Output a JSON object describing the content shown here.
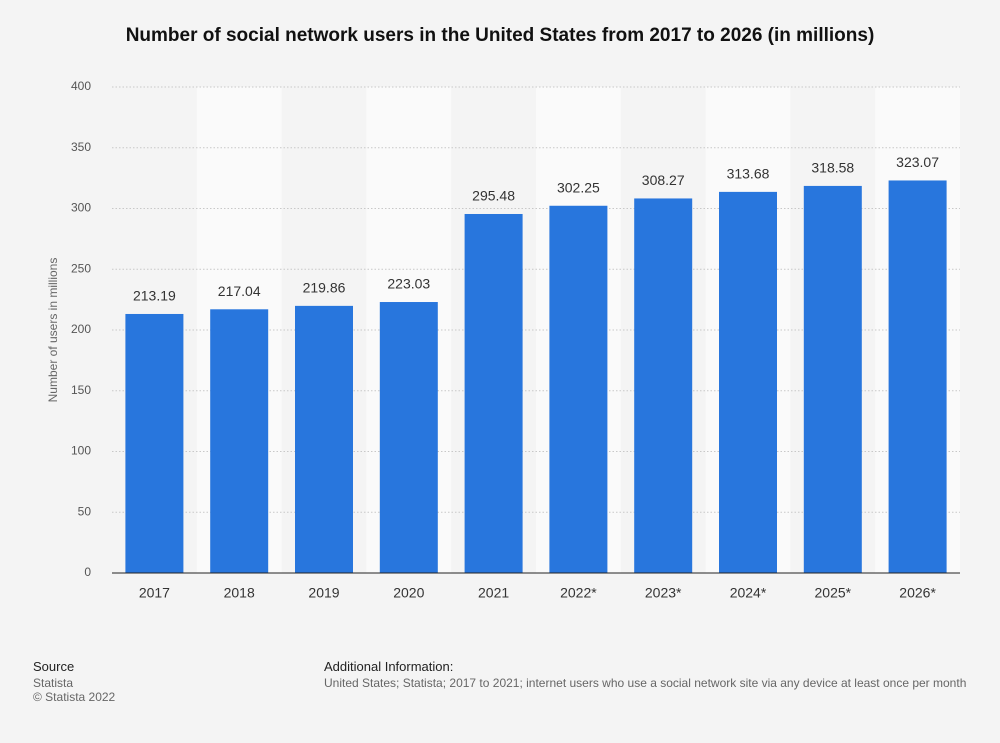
{
  "chart_data": {
    "type": "bar",
    "title": "Number of social network users in the United States from 2017 to 2026 (in millions)",
    "y_label": "Number of users in millions",
    "categories": [
      "2017",
      "2018",
      "2019",
      "2020",
      "2021",
      "2022*",
      "2023*",
      "2024*",
      "2025*",
      "2026*"
    ],
    "values": [
      213.19,
      217.04,
      219.86,
      223.03,
      295.48,
      302.25,
      308.27,
      313.68,
      318.58,
      323.07
    ],
    "color": "#2876dd",
    "ylim": [
      0,
      400
    ],
    "yticks": [
      0,
      50,
      100,
      150,
      200,
      250,
      300,
      350,
      400
    ],
    "grid": true
  },
  "footer": {
    "source_heading": "Source",
    "source": "Statista",
    "copyright": "© Statista 2022",
    "info_heading": "Additional Information:",
    "info": "United States; Statista; 2017 to 2021; internet users who use a social network site via any device at least once per month"
  }
}
